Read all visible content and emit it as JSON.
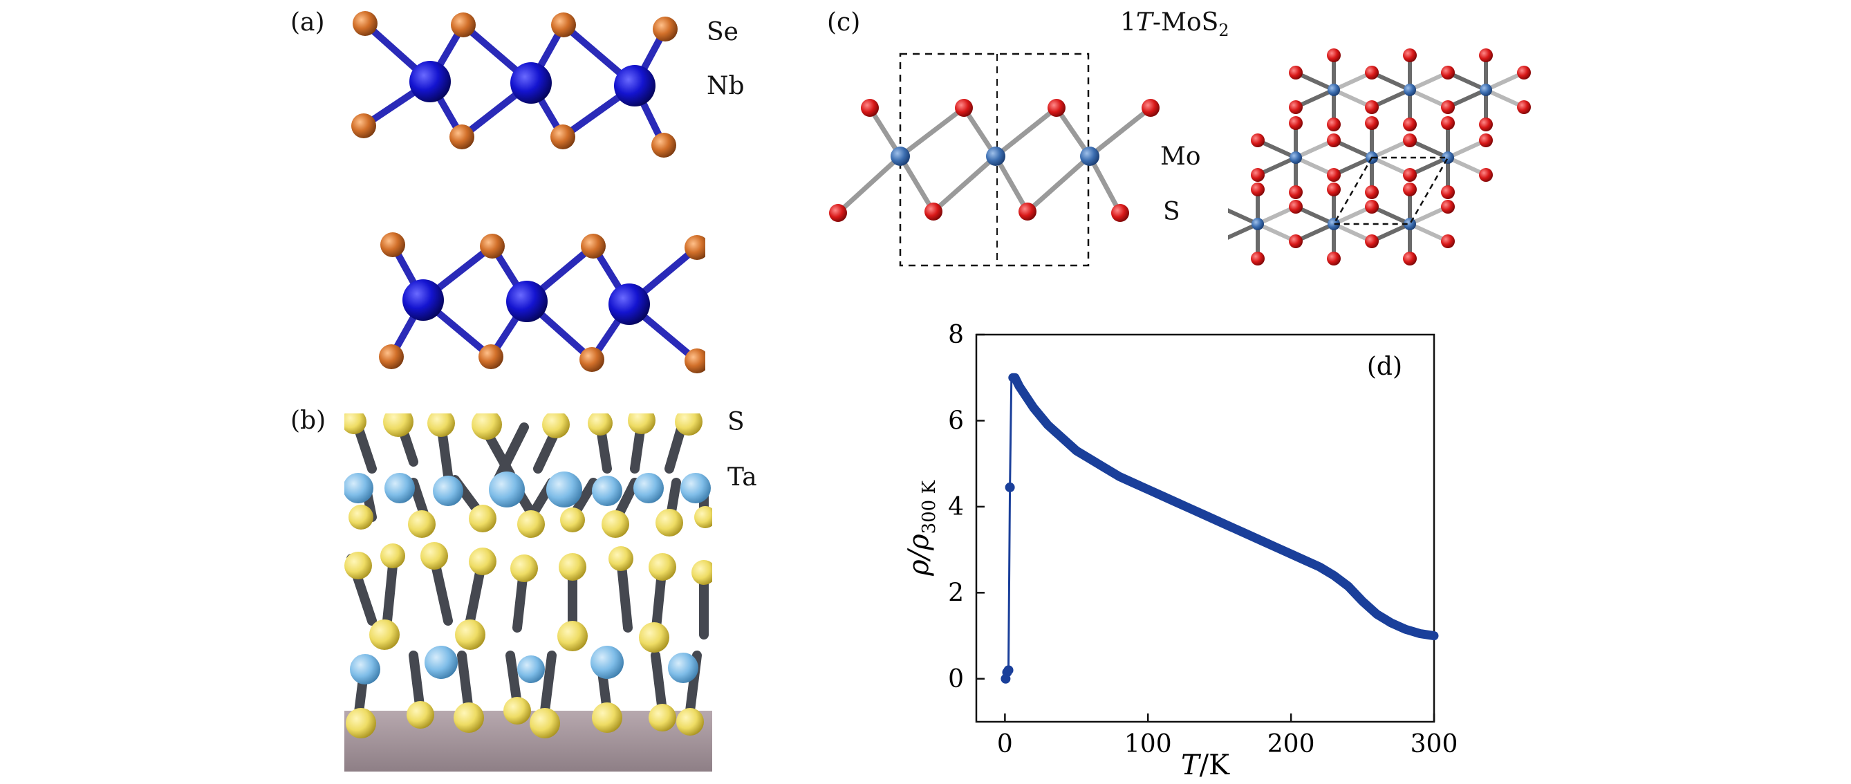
{
  "panels": {
    "a": {
      "label": "(a)",
      "elements": [
        "Se",
        "Nb"
      ]
    },
    "b": {
      "label": "(b)",
      "elements": [
        "S",
        "Ta"
      ]
    },
    "c": {
      "label": "(c)",
      "title_prefix": "1",
      "title_italic": "T",
      "title_mid": "-MoS",
      "title_sub": "2",
      "elements": [
        "Mo",
        "S"
      ]
    },
    "d": {
      "label": "(d)"
    }
  },
  "colors": {
    "nb": "#1010c8",
    "se": "#d2702a",
    "ta": "#7fbde8",
    "s_yellow": "#eedc64",
    "bond_dark": "#454850",
    "mo": "#3b6db0",
    "s_red": "#d81818",
    "curve": "#1a3f9a"
  },
  "chart_data": {
    "type": "line",
    "xlabel_italic": "T",
    "xlabel_rest": "/K",
    "ylabel_main": "ρ/ρ",
    "ylabel_sub": "300 K",
    "xlim": [
      -20,
      300
    ],
    "ylim": [
      -1,
      8
    ],
    "xticks": [
      0,
      100,
      200,
      300
    ],
    "yticks": [
      0,
      2,
      4,
      6,
      8
    ],
    "grid": false,
    "series": [
      {
        "x": [
          0.5,
          1.5,
          2.5,
          3.5,
          4.5,
          5.5,
          7,
          10,
          15,
          20,
          30,
          40,
          50,
          60,
          70,
          80,
          90,
          100,
          110,
          120,
          130,
          140,
          150,
          160,
          170,
          180,
          190,
          200,
          210,
          220,
          230,
          240,
          250,
          260,
          270,
          280,
          290,
          300
        ],
        "y": [
          0.0,
          0.15,
          0.2,
          4.45,
          6.9,
          7.0,
          7.0,
          6.8,
          6.55,
          6.3,
          5.9,
          5.6,
          5.3,
          5.1,
          4.9,
          4.7,
          4.55,
          4.4,
          4.25,
          4.1,
          3.95,
          3.8,
          3.65,
          3.5,
          3.35,
          3.2,
          3.05,
          2.9,
          2.75,
          2.6,
          2.4,
          2.15,
          1.8,
          1.5,
          1.3,
          1.15,
          1.05,
          1.0
        ]
      }
    ]
  }
}
